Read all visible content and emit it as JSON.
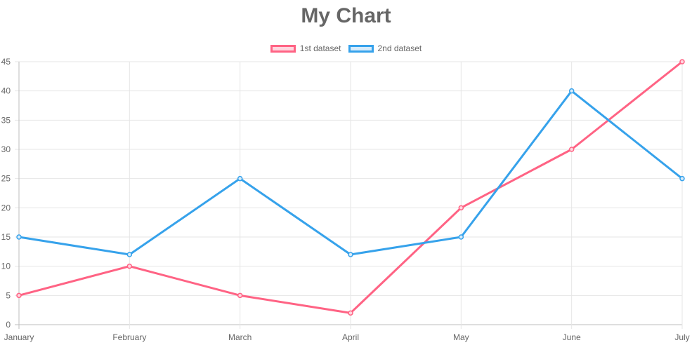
{
  "chart_data": {
    "type": "line",
    "title": "My Chart",
    "categories": [
      "January",
      "February",
      "March",
      "April",
      "May",
      "June",
      "July"
    ],
    "series": [
      {
        "name": "1st dataset",
        "values": [
          5,
          10,
          5,
          2,
          20,
          30,
          45
        ],
        "color": "#ff6384",
        "fill": "#ffd6df"
      },
      {
        "name": "2nd dataset",
        "values": [
          15,
          12,
          25,
          12,
          15,
          40,
          25
        ],
        "color": "#36a2eb",
        "fill": "#d7ecfb"
      }
    ],
    "ylim": [
      0,
      45
    ],
    "yticks": [
      0,
      5,
      10,
      15,
      20,
      25,
      30,
      35,
      40,
      45
    ],
    "grid": true,
    "legend_position": "top"
  }
}
